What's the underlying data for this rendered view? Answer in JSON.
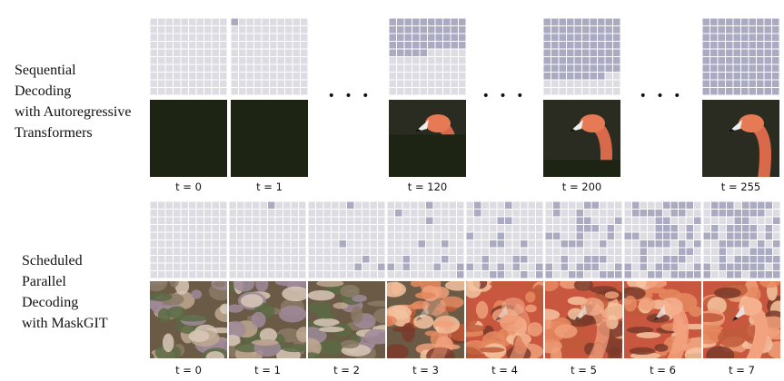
{
  "rows": [
    {
      "label": [
        "Sequential",
        "Decoding",
        "with Autoregressive",
        "Transformers"
      ],
      "steps": [
        "t = 0",
        "t = 1",
        "t = 120",
        "t = 200",
        "t = 255"
      ],
      "ellipses": [
        "• • •",
        "• • •",
        "• • •"
      ]
    },
    {
      "label": [
        "Scheduled",
        "Parallel",
        "Decoding",
        "with MaskGIT"
      ],
      "steps": [
        "t = 0",
        "t = 1",
        "t = 2",
        "t = 3",
        "t = 4",
        "t = 5",
        "t = 6",
        "t = 7"
      ]
    }
  ]
}
